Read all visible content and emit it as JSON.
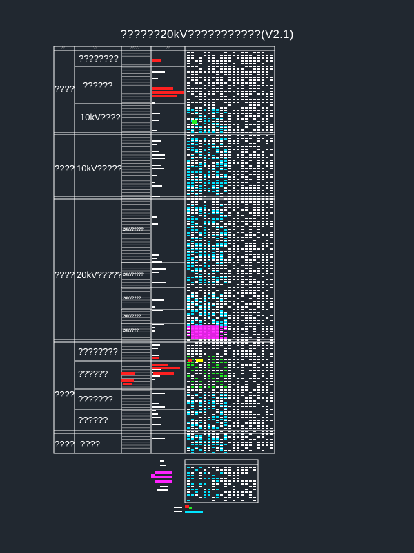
{
  "title": "??????20kV???????????(V2.1)",
  "header": {
    "col1": "??",
    "col2": "??",
    "col3": "?????",
    "col4": "??"
  },
  "sections": [
    {
      "category": "????",
      "rows": [
        "????????",
        "??????",
        "10kV????"
      ]
    },
    {
      "category": "????",
      "rows": [
        "10kV?????"
      ]
    },
    {
      "category": "????",
      "rows": [
        "20kV?????"
      ],
      "subrows": [
        "20kV?????",
        "20kV?????",
        "20kV????",
        "20kV????",
        "20kV???"
      ]
    },
    {
      "category": "????",
      "rows": [
        "????????",
        "??????",
        "???????",
        "??????"
      ]
    },
    {
      "category": "????",
      "rows": [
        "????"
      ]
    }
  ],
  "colors": {
    "background": "#212830",
    "line": "#ffffff",
    "red": "#ff2020",
    "cyan": "#00e5ff",
    "green": "#22ee22",
    "magenta": "#ff22ff",
    "yellow": "#ffff00"
  }
}
